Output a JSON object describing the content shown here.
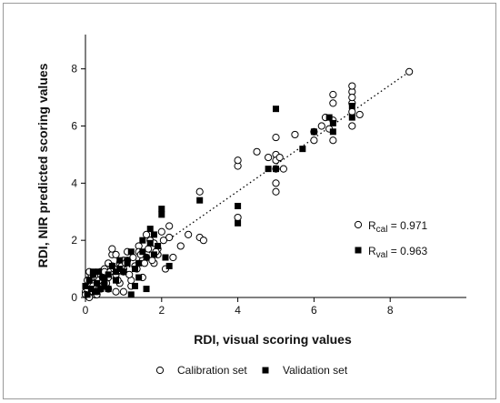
{
  "chart_data": {
    "type": "scatter",
    "xlabel": "RDI, visual scoring values",
    "ylabel": "RDI, NIR predicted scoring values",
    "xlim": [
      0,
      10
    ],
    "ylim": [
      0,
      9.2
    ],
    "x_ticks": [
      0,
      2,
      4,
      6,
      8
    ],
    "y_ticks": [
      0,
      2,
      4,
      6,
      8
    ],
    "x_tick_labels": [
      "0",
      "2",
      "4",
      "6",
      "8"
    ],
    "y_tick_labels": [
      "0",
      "2",
      "4",
      "6",
      "8"
    ],
    "grid": false,
    "fit_line": {
      "style": "dotted",
      "x": [
        0,
        8.5
      ],
      "y": [
        0,
        7.9
      ]
    },
    "annotations": [
      {
        "marker": "open-circle",
        "symbol": "R",
        "subscript": "cal",
        "text": "= 0.971"
      },
      {
        "marker": "filled-square",
        "symbol": "R",
        "subscript": "val",
        "text": "= 0.963"
      }
    ],
    "legend": {
      "placement": "bottom"
    },
    "series": [
      {
        "name": "Calibration set",
        "marker": "open-circle",
        "x": [
          0.0,
          0.05,
          0.1,
          0.15,
          0.2,
          0.25,
          0.3,
          0.35,
          0.4,
          0.5,
          0.6,
          0.7,
          0.8,
          0.9,
          1.0,
          0.1,
          0.2,
          0.3,
          0.4,
          0.5,
          0.6,
          0.7,
          0.8,
          0.9,
          1.0,
          1.1,
          1.2,
          1.3,
          1.4,
          1.5,
          1.6,
          1.7,
          1.8,
          1.9,
          2.0,
          2.1,
          2.2,
          2.3,
          2.5,
          2.7,
          3.0,
          3.1,
          0.2,
          0.4,
          0.6,
          0.8,
          1.0,
          1.2,
          1.5,
          1.8,
          0.3,
          0.5,
          0.7,
          1.1,
          1.4,
          1.6,
          1.9,
          2.2,
          0.05,
          0.15,
          0.25,
          0.35,
          0.45,
          0.55,
          0.65,
          0.75,
          0.85,
          0.95,
          1.05,
          1.15,
          1.25,
          1.35,
          1.45,
          1.55,
          1.65,
          1.75,
          1.85,
          2.05,
          3.0,
          4.0,
          4.0,
          4.0,
          4.5,
          4.8,
          5.0,
          5.0,
          5.0,
          5.0,
          5.0,
          5.0,
          5.1,
          5.2,
          5.5,
          6.0,
          6.0,
          6.2,
          6.3,
          6.4,
          6.5,
          6.5,
          6.5,
          6.5,
          7.0,
          7.0,
          7.0,
          7.0,
          7.0,
          7.0,
          7.2,
          8.5,
          0.0,
          0.1,
          0.2,
          1.0
        ],
        "y": [
          0.2,
          0.6,
          0.3,
          0.8,
          0.5,
          0.1,
          0.7,
          0.4,
          0.9,
          0.6,
          0.3,
          1.1,
          0.8,
          0.5,
          1.3,
          0.0,
          0.2,
          0.1,
          0.3,
          1.0,
          0.7,
          1.5,
          0.2,
          1.2,
          0.9,
          1.6,
          0.4,
          1.1,
          1.8,
          0.7,
          1.4,
          2.0,
          1.2,
          1.7,
          2.3,
          1.0,
          2.1,
          1.4,
          1.8,
          2.2,
          2.1,
          2.0,
          0.4,
          0.8,
          1.2,
          1.5,
          1.0,
          0.6,
          1.3,
          1.9,
          0.5,
          0.9,
          1.7,
          1.3,
          1.6,
          2.2,
          1.5,
          2.5,
          0.3,
          0.4,
          0.5,
          0.6,
          0.7,
          0.5,
          0.9,
          1.0,
          0.6,
          1.1,
          1.2,
          0.8,
          1.4,
          1.0,
          1.5,
          1.2,
          1.7,
          1.3,
          1.6,
          2.0,
          3.7,
          2.8,
          4.6,
          4.8,
          5.1,
          4.9,
          3.7,
          4.0,
          4.5,
          5.0,
          4.8,
          5.6,
          4.9,
          4.5,
          5.7,
          5.5,
          5.8,
          6.0,
          6.3,
          5.9,
          5.5,
          6.2,
          6.8,
          7.1,
          6.0,
          6.5,
          6.8,
          7.2,
          7.4,
          7.0,
          6.4,
          7.9,
          0.1,
          0.9,
          0.4,
          0.2
        ]
      },
      {
        "name": "Validation set",
        "marker": "filled-square",
        "x": [
          0.0,
          0.05,
          0.1,
          0.15,
          0.2,
          0.25,
          0.3,
          0.35,
          0.4,
          0.45,
          0.5,
          0.6,
          0.7,
          0.8,
          0.9,
          1.0,
          1.1,
          1.2,
          1.3,
          1.4,
          1.5,
          1.6,
          1.7,
          1.8,
          1.9,
          2.0,
          2.0,
          2.1,
          2.2,
          1.2,
          1.5,
          1.8,
          3.0,
          4.0,
          4.0,
          4.8,
          5.0,
          5.0,
          5.7,
          6.0,
          6.4,
          6.5,
          6.5,
          7.0,
          7.0,
          0.3,
          0.5,
          0.8,
          1.1,
          1.3,
          1.6,
          0.2,
          0.6,
          0.9,
          1.4,
          1.7
        ],
        "y": [
          0.4,
          0.1,
          0.6,
          0.3,
          0.8,
          0.2,
          0.5,
          0.9,
          0.3,
          0.7,
          0.4,
          0.8,
          1.1,
          0.6,
          1.0,
          0.9,
          1.3,
          0.1,
          1.0,
          1.2,
          1.6,
          0.3,
          2.4,
          1.5,
          1.8,
          2.9,
          3.1,
          1.4,
          1.1,
          1.6,
          2.0,
          2.2,
          3.4,
          3.2,
          2.6,
          4.5,
          4.5,
          6.6,
          5.2,
          5.8,
          6.3,
          5.8,
          6.1,
          6.7,
          6.3,
          0.2,
          0.6,
          0.9,
          1.2,
          0.4,
          1.4,
          0.9,
          0.3,
          1.3,
          0.7,
          1.9
        ]
      }
    ]
  }
}
